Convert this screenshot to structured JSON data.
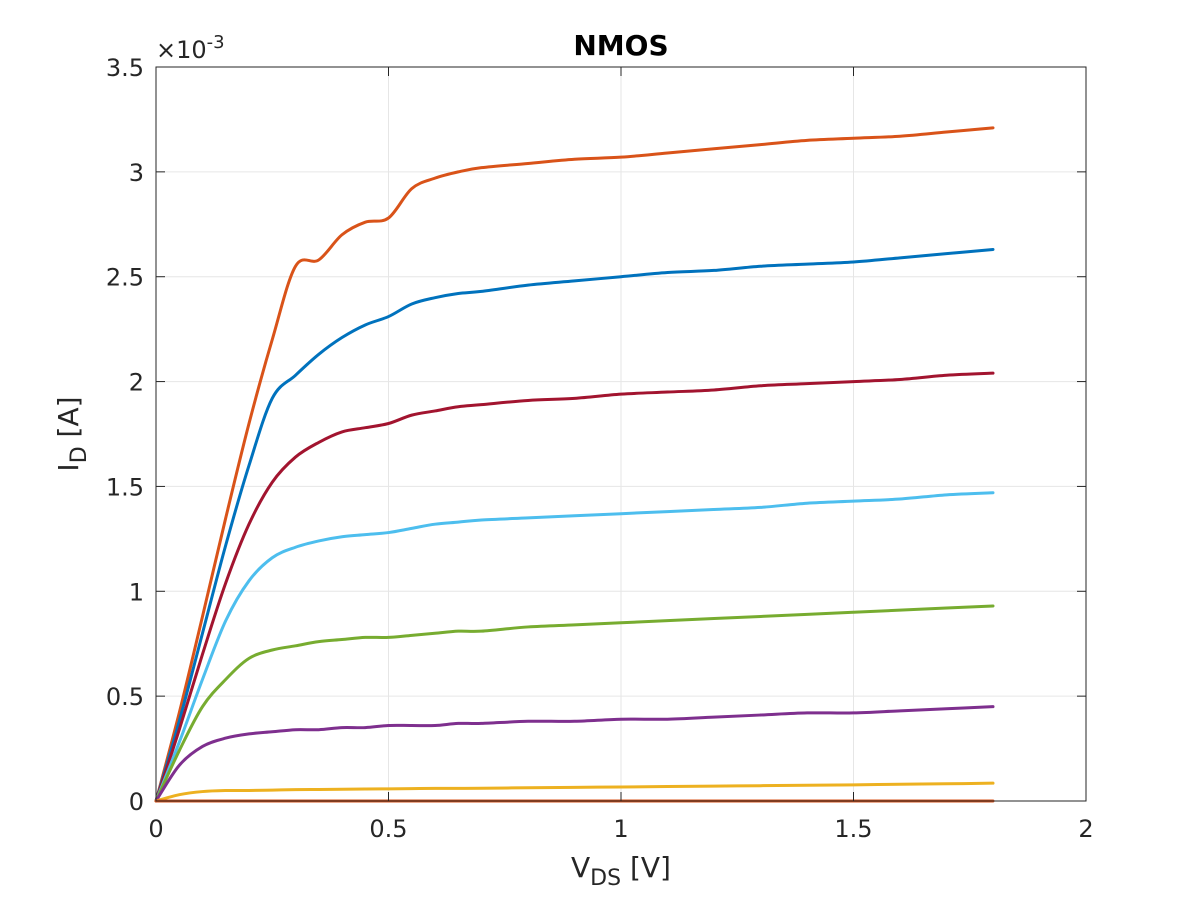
{
  "chart_data": {
    "type": "line",
    "title": "NMOS",
    "xlabel": {
      "main": "V",
      "sub": "DS",
      "unit": " [V]"
    },
    "ylabel": {
      "main": "I",
      "sub": "D",
      "unit": " [A]"
    },
    "y_exponent": {
      "base": "×10",
      "power": "-3"
    },
    "xlim": [
      0,
      2
    ],
    "ylim": [
      0,
      0.0035
    ],
    "x_ticks": [
      0,
      0.5,
      1,
      1.5,
      2
    ],
    "x_tick_labels": [
      "0",
      "0.5",
      "1",
      "1.5",
      "2"
    ],
    "y_ticks": [
      0,
      0.0005,
      0.001,
      0.0015,
      0.002,
      0.0025,
      0.003,
      0.0035
    ],
    "y_tick_labels": [
      "0",
      "0.5",
      "1",
      "1.5",
      "2",
      "2.5",
      "3",
      "3.5"
    ],
    "grid": true,
    "x": [
      0,
      0.05,
      0.1,
      0.15,
      0.2,
      0.25,
      0.3,
      0.35,
      0.4,
      0.45,
      0.5,
      0.55,
      0.6,
      0.65,
      0.7,
      0.8,
      0.9,
      1.0,
      1.1,
      1.2,
      1.3,
      1.4,
      1.5,
      1.6,
      1.7,
      1.8
    ],
    "series": [
      {
        "color": "#D95319",
        "values": [
          0,
          0.00042,
          0.00088,
          0.00135,
          0.0018,
          0.0022,
          0.00255,
          0.00258,
          0.0027,
          0.00276,
          0.00278,
          0.00292,
          0.00297,
          0.003,
          0.00302,
          0.00304,
          0.00306,
          0.00307,
          0.00309,
          0.00311,
          0.00313,
          0.00315,
          0.00316,
          0.00317,
          0.00319,
          0.00321
        ]
      },
      {
        "color": "#0072BD",
        "values": [
          0,
          0.00038,
          0.0008,
          0.00122,
          0.0016,
          0.00192,
          0.00203,
          0.00213,
          0.00221,
          0.00227,
          0.00231,
          0.00237,
          0.0024,
          0.00242,
          0.00243,
          0.00246,
          0.00248,
          0.0025,
          0.00252,
          0.00253,
          0.00255,
          0.00256,
          0.00257,
          0.00259,
          0.00261,
          0.00263
        ]
      },
      {
        "color": "#A2142F",
        "values": [
          0,
          0.00034,
          0.0007,
          0.00104,
          0.00132,
          0.00152,
          0.00164,
          0.00171,
          0.00176,
          0.00178,
          0.0018,
          0.00184,
          0.00186,
          0.00188,
          0.00189,
          0.00191,
          0.00192,
          0.00194,
          0.00195,
          0.00196,
          0.00198,
          0.00199,
          0.002,
          0.00201,
          0.00203,
          0.00204
        ]
      },
      {
        "color": "#4DBEEE",
        "values": [
          0,
          0.00028,
          0.00058,
          0.00086,
          0.00105,
          0.00116,
          0.00121,
          0.00124,
          0.00126,
          0.00127,
          0.00128,
          0.0013,
          0.00132,
          0.00133,
          0.00134,
          0.00135,
          0.00136,
          0.00137,
          0.00138,
          0.00139,
          0.0014,
          0.00142,
          0.00143,
          0.00144,
          0.00146,
          0.00147
        ]
      },
      {
        "color": "#77AC30",
        "values": [
          0,
          0.00024,
          0.00045,
          0.00058,
          0.00068,
          0.00072,
          0.00074,
          0.00076,
          0.00077,
          0.00078,
          0.00078,
          0.00079,
          0.0008,
          0.00081,
          0.00081,
          0.00083,
          0.00084,
          0.00085,
          0.00086,
          0.00087,
          0.00088,
          0.00089,
          0.0009,
          0.00091,
          0.00092,
          0.00093
        ]
      },
      {
        "color": "#7E2F8E",
        "values": [
          0,
          0.00017,
          0.00026,
          0.0003,
          0.00032,
          0.00033,
          0.00034,
          0.00034,
          0.00035,
          0.00035,
          0.00036,
          0.00036,
          0.00036,
          0.00037,
          0.00037,
          0.00038,
          0.00038,
          0.00039,
          0.00039,
          0.0004,
          0.00041,
          0.00042,
          0.00042,
          0.00043,
          0.00044,
          0.00045
        ]
      },
      {
        "color": "#EDB120",
        "values": [
          0,
          3e-05,
          4.5e-05,
          5e-05,
          5e-05,
          5.2e-05,
          5.4e-05,
          5.5e-05,
          5.6e-05,
          5.7e-05,
          5.8e-05,
          5.9e-05,
          6e-05,
          6e-05,
          6.1e-05,
          6.3e-05,
          6.5e-05,
          6.7e-05,
          6.9e-05,
          7.1e-05,
          7.3e-05,
          7.5e-05,
          7.7e-05,
          8e-05,
          8.2e-05,
          8.5e-05
        ]
      },
      {
        "color": "#D95319",
        "values": [
          0,
          0,
          0,
          0,
          0,
          0,
          0,
          0,
          0,
          0,
          0,
          0,
          0,
          0,
          0,
          0,
          0,
          0,
          0,
          0,
          0,
          0,
          0,
          0,
          0,
          0
        ]
      }
    ]
  }
}
